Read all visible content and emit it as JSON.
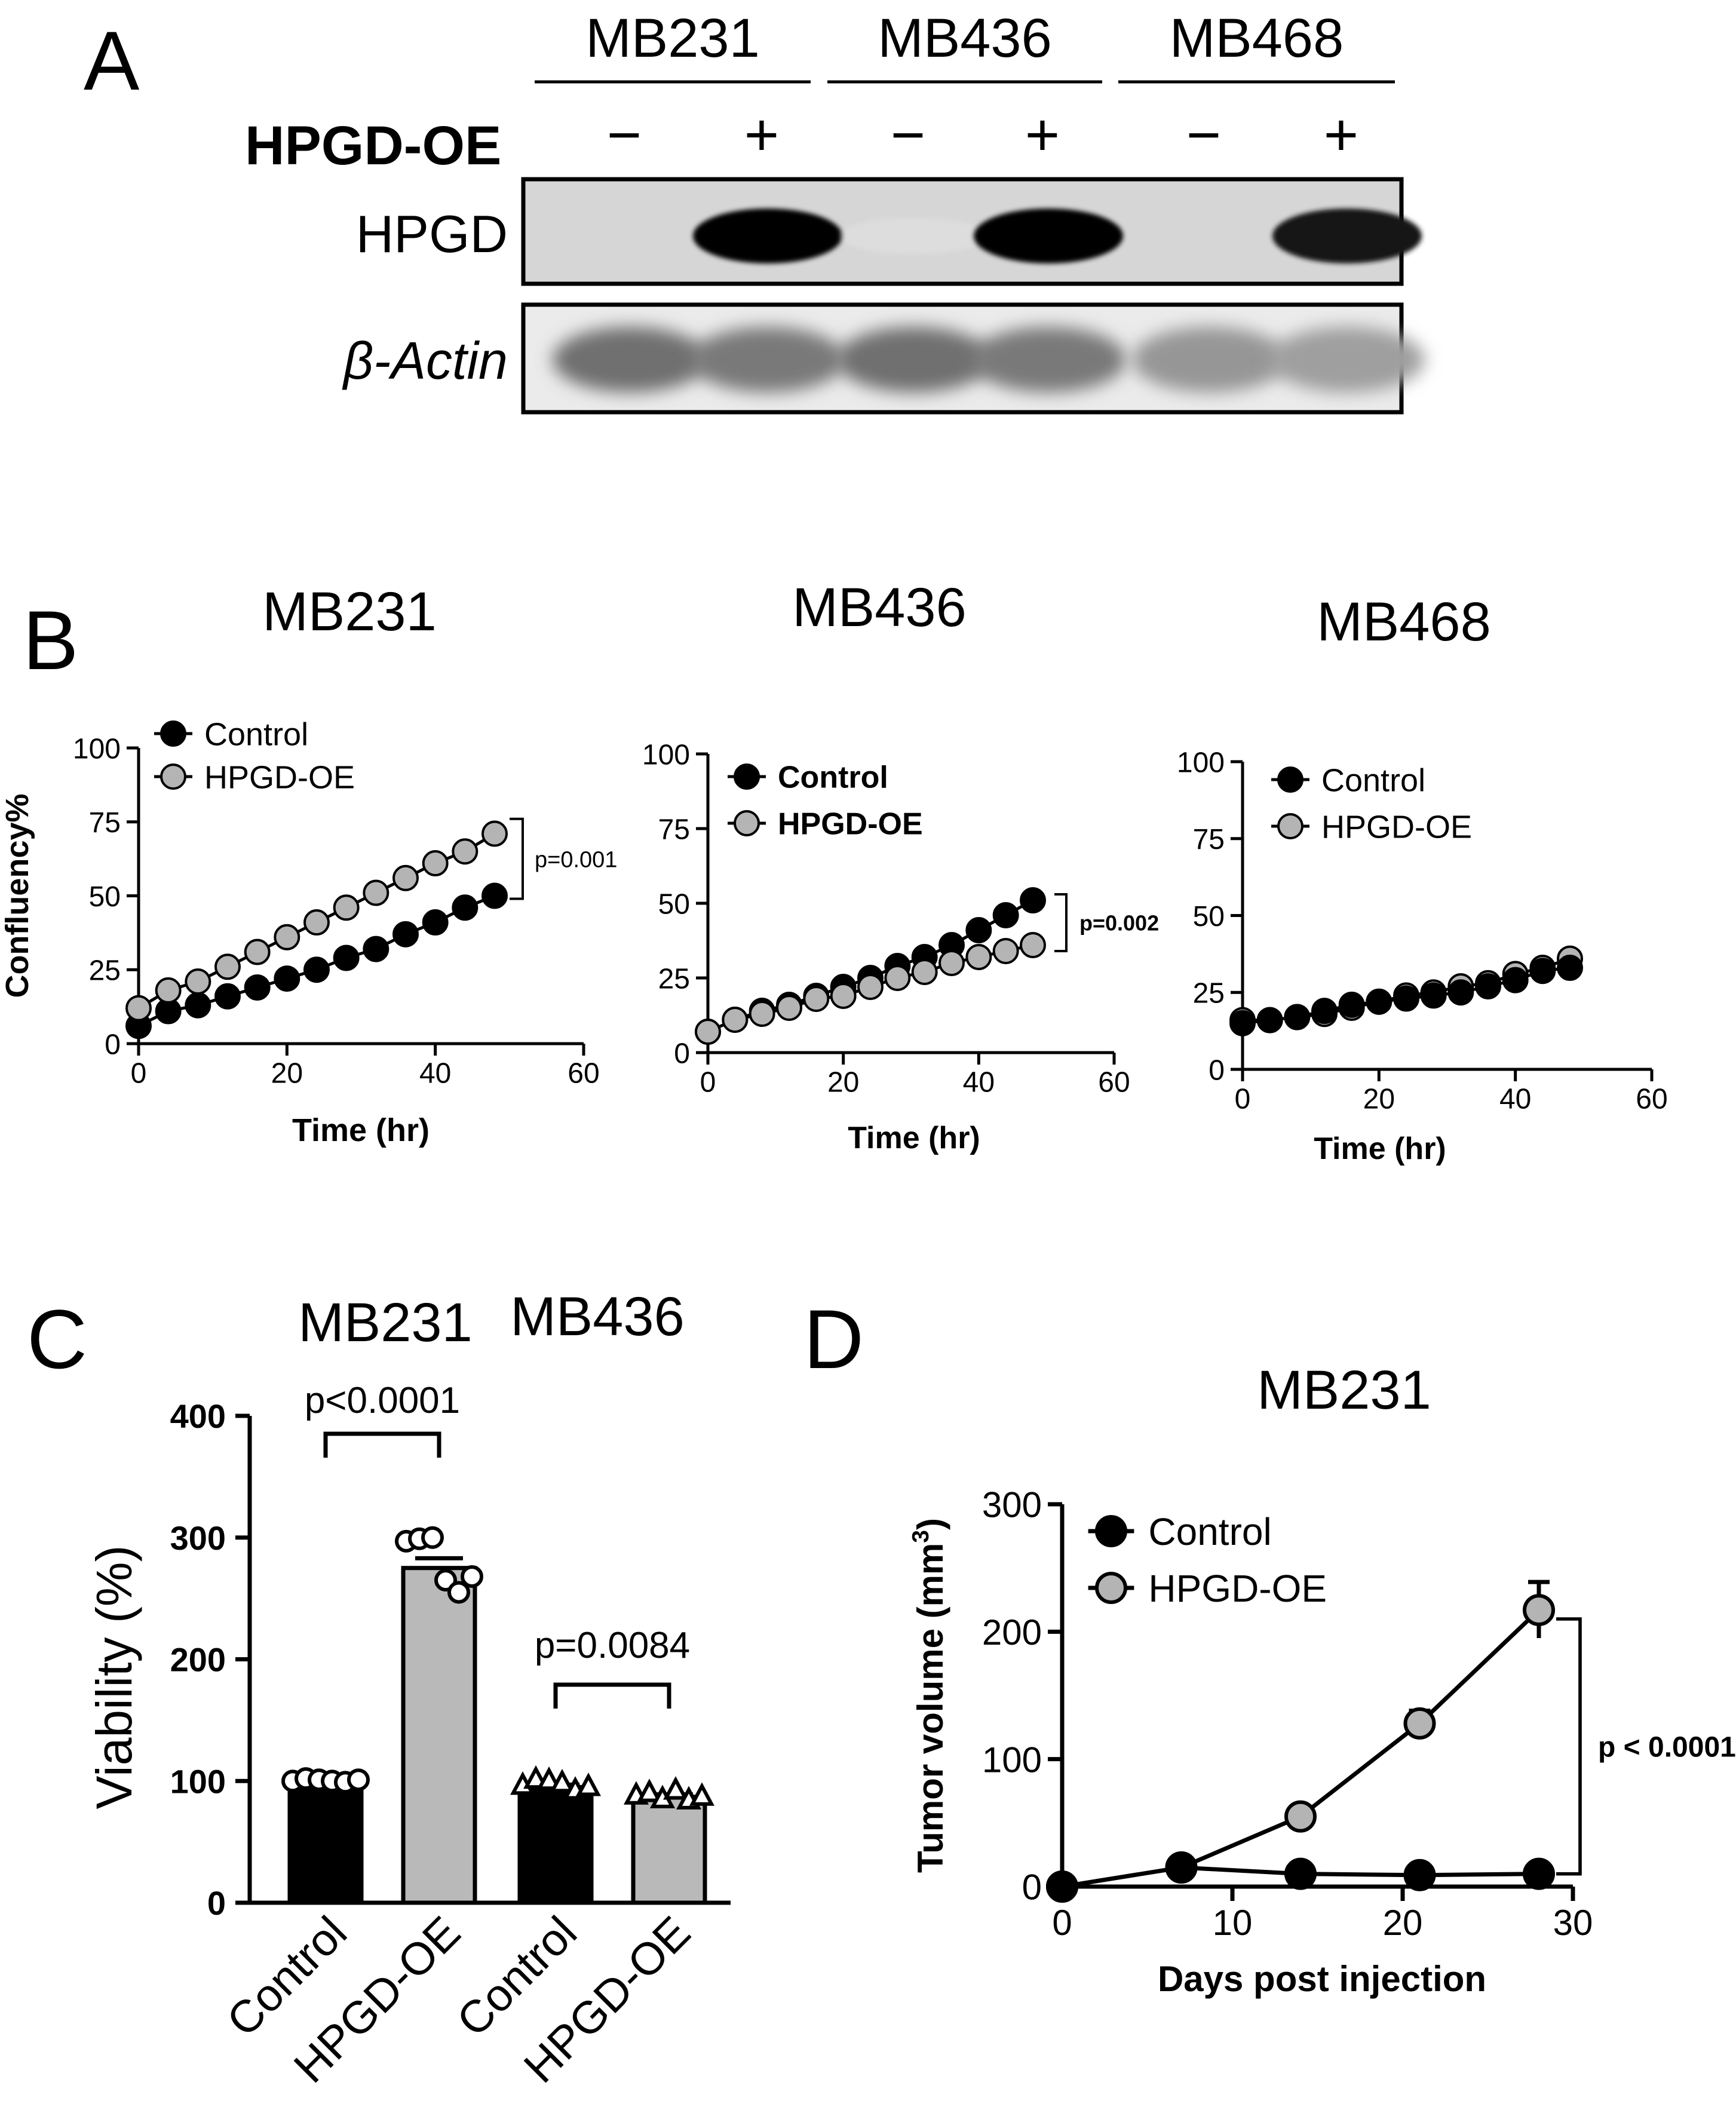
{
  "panel_a": {
    "letter": "A",
    "cell_lines": [
      "MB231",
      "MB436",
      "MB468"
    ],
    "condition_label": "HPGD-OE",
    "condition_signs": [
      "−",
      "+",
      "−",
      "+",
      "−",
      "+"
    ],
    "bands": [
      {
        "label": "HPGD",
        "italic": false,
        "intensities": [
          0.02,
          1.0,
          0.05,
          1.0,
          0.0,
          0.9
        ]
      },
      {
        "label": "β-Actin",
        "italic": true,
        "intensities": [
          0.75,
          0.7,
          0.75,
          0.7,
          0.55,
          0.5
        ]
      }
    ]
  },
  "panel_b": {
    "letter": "B"
  },
  "panel_c": {
    "letter": "C"
  },
  "panel_d": {
    "letter": "D"
  },
  "colors": {
    "black": "#000000",
    "gray": "#b4b4b4",
    "bar_gray": "#b9b9b9"
  },
  "chart_data": [
    {
      "id": "b1",
      "type": "line",
      "title": "MB231",
      "xlabel": "Time (hr)",
      "ylabel": "Confluency%",
      "xlim": [
        0,
        60
      ],
      "ylim": [
        0,
        100
      ],
      "xticks": [
        0,
        20,
        40,
        60
      ],
      "yticks": [
        0,
        25,
        50,
        75,
        100
      ],
      "legend": [
        "Control",
        "HPGD-OE"
      ],
      "series": [
        {
          "name": "Control",
          "x": [
            0,
            4,
            8,
            12,
            16,
            20,
            24,
            28,
            32,
            36,
            40,
            44,
            48
          ],
          "y": [
            6,
            11,
            13,
            16,
            19,
            22,
            25,
            29,
            32,
            37,
            41,
            46,
            50
          ]
        },
        {
          "name": "HPGD-OE",
          "x": [
            0,
            4,
            8,
            12,
            16,
            20,
            24,
            28,
            32,
            36,
            40,
            44,
            48
          ],
          "y": [
            12,
            18,
            21,
            26,
            31,
            36,
            41,
            46,
            51,
            56,
            61,
            65,
            71
          ]
        }
      ],
      "annotation": "p=0.001"
    },
    {
      "id": "b2",
      "type": "line",
      "title": "MB436",
      "xlabel": "Time (hr)",
      "ylabel": "",
      "xlim": [
        0,
        60
      ],
      "ylim": [
        0,
        100
      ],
      "xticks": [
        0,
        20,
        40,
        60
      ],
      "yticks": [
        0,
        25,
        50,
        75,
        100
      ],
      "legend": [
        "Control",
        "HPGD-OE"
      ],
      "series": [
        {
          "name": "Control",
          "x": [
            0,
            4,
            8,
            12,
            16,
            20,
            24,
            28,
            32,
            36,
            40,
            44,
            48
          ],
          "y": [
            7,
            11,
            14,
            16,
            19,
            22,
            25,
            29,
            32,
            36,
            41,
            46,
            51
          ]
        },
        {
          "name": "HPGD-OE",
          "x": [
            0,
            4,
            8,
            12,
            16,
            20,
            24,
            28,
            32,
            36,
            40,
            44,
            48
          ],
          "y": [
            7,
            11,
            13,
            15,
            18,
            19,
            22,
            25,
            27,
            30,
            32,
            34,
            36
          ]
        }
      ],
      "annotation": "p=0.002"
    },
    {
      "id": "b3",
      "type": "line",
      "title": "MB468",
      "xlabel": "Time (hr)",
      "ylabel": "",
      "xlim": [
        0,
        60
      ],
      "ylim": [
        0,
        100
      ],
      "xticks": [
        0,
        20,
        40,
        60
      ],
      "yticks": [
        0,
        25,
        50,
        75,
        100
      ],
      "legend": [
        "Control",
        "HPGD-OE"
      ],
      "series": [
        {
          "name": "Control",
          "x": [
            0,
            4,
            8,
            12,
            16,
            20,
            24,
            28,
            32,
            36,
            40,
            44,
            48
          ],
          "y": [
            15,
            16,
            17,
            19,
            21,
            22,
            23,
            24,
            25,
            27,
            29,
            32,
            33
          ]
        },
        {
          "name": "HPGD-OE",
          "x": [
            0,
            4,
            8,
            12,
            16,
            20,
            24,
            28,
            32,
            36,
            40,
            44,
            48
          ],
          "y": [
            16,
            16,
            17,
            18,
            20,
            22,
            24,
            25,
            27,
            28,
            31,
            33,
            36
          ]
        }
      ]
    },
    {
      "id": "c",
      "type": "bar",
      "group_titles": [
        "MB231",
        "MB436"
      ],
      "categories": [
        "Control",
        "HPGD-OE",
        "Control",
        "HPGD-OE"
      ],
      "values": [
        100,
        275,
        95,
        87
      ],
      "errors": [
        2,
        8,
        2,
        2
      ],
      "bar_colors": [
        "#000000",
        "#b9b9b9",
        "#000000",
        "#b9b9b9"
      ],
      "points": [
        [
          100,
          102,
          101,
          100,
          99,
          101
        ],
        [
          297,
          299,
          300,
          265,
          255,
          268
        ],
        [
          96,
          101,
          100,
          98,
          92,
          95
        ],
        [
          88,
          90,
          85,
          92,
          84,
          87
        ]
      ],
      "point_markers": [
        "circle",
        "circle",
        "triangle",
        "triangle"
      ],
      "ylabel": "Viability (%)",
      "ylim": [
        0,
        400
      ],
      "yticks": [
        0,
        100,
        200,
        300,
        400
      ],
      "comparisons": [
        {
          "pair": [
            0,
            1
          ],
          "text": "p<0.0001"
        },
        {
          "pair": [
            2,
            3
          ],
          "text": "p=0.0084"
        }
      ]
    },
    {
      "id": "d",
      "type": "line",
      "title": "MB231",
      "xlabel": "Days post injection",
      "ylabel": "Tumor volume (mm",
      "ylabel_superscript": "3",
      "ylabel_suffix": ")",
      "xlim": [
        0,
        30
      ],
      "ylim": [
        0,
        300
      ],
      "xticks": [
        0,
        10,
        20,
        30
      ],
      "yticks": [
        0,
        100,
        200,
        300
      ],
      "legend": [
        "Control",
        "HPGD-OE"
      ],
      "series": [
        {
          "name": "Control",
          "x": [
            0,
            7,
            14,
            21,
            28
          ],
          "y": [
            0,
            15,
            10,
            9,
            10
          ],
          "err": [
            0,
            2,
            2,
            1,
            2
          ]
        },
        {
          "name": "HPGD-OE",
          "x": [
            0,
            7,
            14,
            21,
            28
          ],
          "y": [
            0,
            15,
            55,
            128,
            217
          ],
          "err": [
            0,
            2,
            4,
            10,
            22
          ]
        }
      ],
      "annotation": "p < 0.0001"
    }
  ]
}
